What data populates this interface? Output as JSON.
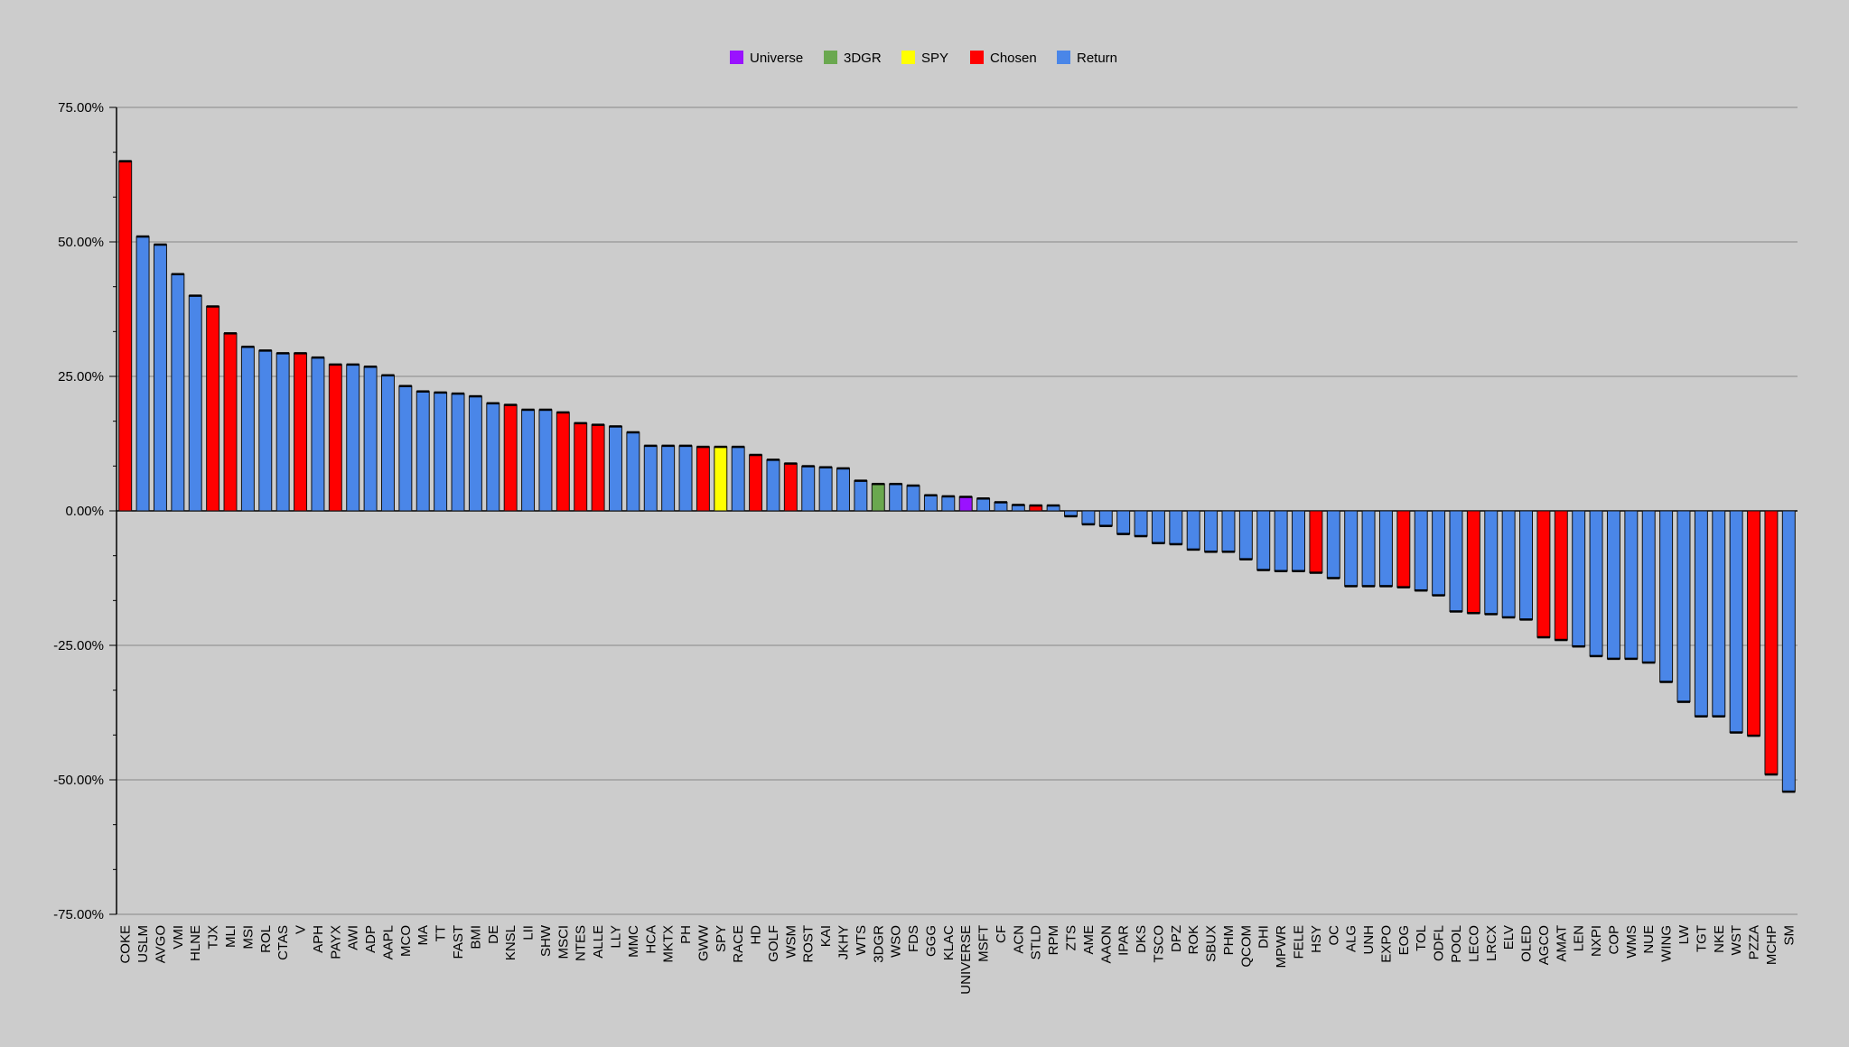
{
  "chart_data": {
    "type": "bar",
    "title": "",
    "xlabel": "",
    "ylabel": "",
    "ylim": [
      -0.75,
      0.75
    ],
    "y_ticks": [
      0.75,
      0.5,
      0.25,
      0.0,
      -0.25,
      -0.5,
      -0.75
    ],
    "y_tick_labels": [
      "75.00%",
      "50.00%",
      "25.00%",
      "0.00%",
      "-25.00%",
      "-50.00%",
      "-75.00%"
    ],
    "grid": true,
    "legend_position": "top-center",
    "legend": [
      {
        "name": "Universe",
        "color": "#9a12ff"
      },
      {
        "name": "3DGR",
        "color": "#6aa84f"
      },
      {
        "name": "SPY",
        "color": "#ffff00"
      },
      {
        "name": "Chosen",
        "color": "#ff0000"
      },
      {
        "name": "Return",
        "color": "#4a86e8"
      }
    ],
    "categories": [
      "COKE",
      "USLM",
      "AVGO",
      "VMI",
      "HLNE",
      "TJX",
      "MLI",
      "MSI",
      "ROL",
      "CTAS",
      "V",
      "APH",
      "PAYX",
      "AWI",
      "ADP",
      "AAPL",
      "MCO",
      "MA",
      "TT",
      "FAST",
      "BMI",
      "DE",
      "KNSL",
      "LII",
      "SHW",
      "MSCI",
      "NTES",
      "ALLE",
      "LLY",
      "MMC",
      "HCA",
      "MKTX",
      "PH",
      "GWW",
      "SPY",
      "RACE",
      "HD",
      "GOLF",
      "WSM",
      "ROST",
      "KAI",
      "JKHY",
      "WTS",
      "3DGR",
      "WSO",
      "FDS",
      "GGG",
      "KLAC",
      "UNIVERSE",
      "MSFT",
      "CF",
      "ACN",
      "STLD",
      "RPM",
      "ZTS",
      "AME",
      "AAON",
      "IPAR",
      "DKS",
      "TSCO",
      "DPZ",
      "ROK",
      "SBUX",
      "PHM",
      "QCOM",
      "DHI",
      "MPWR",
      "FELE",
      "HSY",
      "OC",
      "ALG",
      "UNH",
      "EXPO",
      "EOG",
      "TOL",
      "ODFL",
      "POOL",
      "LECO",
      "LRCX",
      "ELV",
      "OLED",
      "AGCO",
      "AMAT",
      "LEN",
      "NXPI",
      "COP",
      "WMS",
      "NUE",
      "WING",
      "LW",
      "TGT",
      "NKE",
      "WST",
      "PZZA",
      "MCHP",
      "SM"
    ],
    "values": [
      0.65,
      0.51,
      0.495,
      0.44,
      0.4,
      0.38,
      0.33,
      0.305,
      0.298,
      0.293,
      0.293,
      0.285,
      0.272,
      0.272,
      0.268,
      0.252,
      0.232,
      0.222,
      0.22,
      0.218,
      0.213,
      0.2,
      0.197,
      0.188,
      0.188,
      0.183,
      0.163,
      0.16,
      0.157,
      0.146,
      0.121,
      0.121,
      0.121,
      0.119,
      0.119,
      0.119,
      0.104,
      0.095,
      0.088,
      0.083,
      0.081,
      0.079,
      0.056,
      0.05,
      0.05,
      0.047,
      0.029,
      0.027,
      0.026,
      0.023,
      0.016,
      0.011,
      0.01,
      0.01,
      -0.01,
      -0.025,
      -0.028,
      -0.043,
      -0.047,
      -0.06,
      -0.062,
      -0.072,
      -0.076,
      -0.076,
      -0.09,
      -0.11,
      -0.112,
      -0.112,
      -0.115,
      -0.125,
      -0.14,
      -0.14,
      -0.14,
      -0.142,
      -0.148,
      -0.157,
      -0.187,
      -0.19,
      -0.192,
      -0.198,
      -0.202,
      -0.235,
      -0.24,
      -0.252,
      -0.27,
      -0.275,
      -0.275,
      -0.282,
      -0.318,
      -0.355,
      -0.382,
      -0.382,
      -0.412,
      -0.418,
      -0.49,
      -0.522
    ],
    "bar_groups": [
      "Chosen",
      "Return",
      "Return",
      "Return",
      "Return",
      "Chosen",
      "Chosen",
      "Return",
      "Return",
      "Return",
      "Chosen",
      "Return",
      "Chosen",
      "Return",
      "Return",
      "Return",
      "Return",
      "Return",
      "Return",
      "Return",
      "Return",
      "Return",
      "Chosen",
      "Return",
      "Return",
      "Chosen",
      "Chosen",
      "Chosen",
      "Return",
      "Return",
      "Return",
      "Return",
      "Return",
      "Chosen",
      "SPY",
      "Return",
      "Chosen",
      "Return",
      "Chosen",
      "Return",
      "Return",
      "Return",
      "Return",
      "3DGR",
      "Return",
      "Return",
      "Return",
      "Return",
      "Universe",
      "Return",
      "Return",
      "Return",
      "Chosen",
      "Return",
      "Return",
      "Return",
      "Return",
      "Return",
      "Return",
      "Return",
      "Return",
      "Return",
      "Return",
      "Return",
      "Return",
      "Return",
      "Return",
      "Return",
      "Chosen",
      "Return",
      "Return",
      "Return",
      "Return",
      "Chosen",
      "Return",
      "Return",
      "Return",
      "Chosen",
      "Return",
      "Return",
      "Return",
      "Chosen",
      "Chosen",
      "Return",
      "Return",
      "Return",
      "Return",
      "Return",
      "Return",
      "Return",
      "Return",
      "Return",
      "Return",
      "Chosen",
      "Chosen",
      "Return"
    ]
  }
}
